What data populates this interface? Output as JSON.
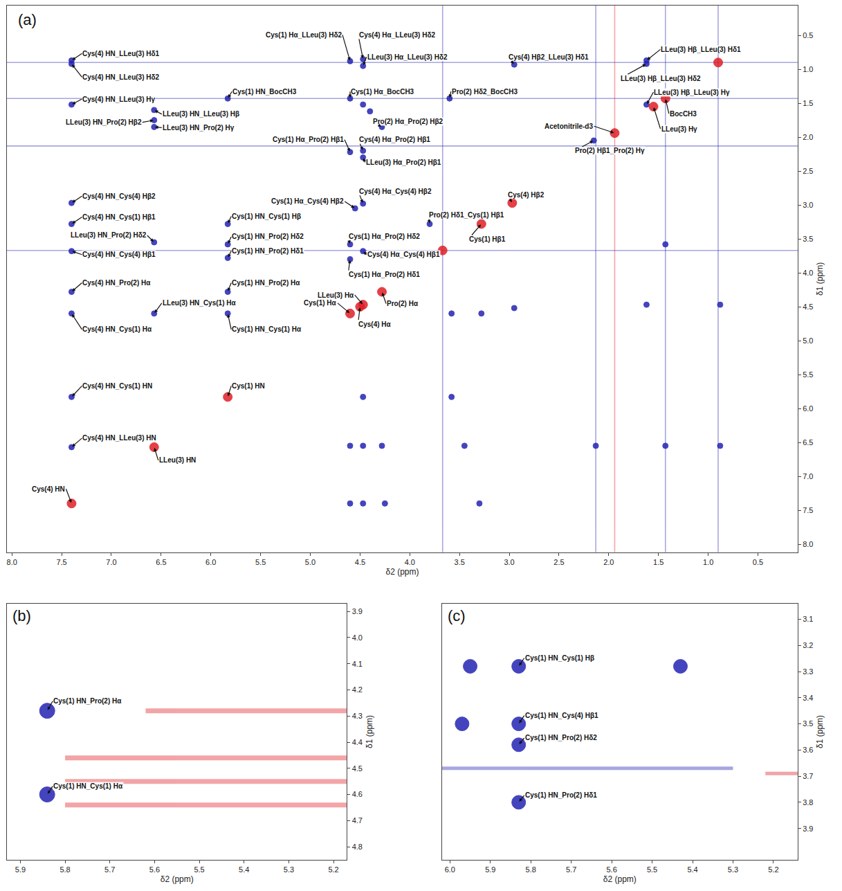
{
  "chart_data": [
    {
      "type": "scatter",
      "title": "(a)",
      "xlabel": "δ2 (ppm)",
      "ylabel": "δ1 (ppm)",
      "xlim": [
        8.05,
        0.1
      ],
      "xticks": [
        {
          "value": 8,
          "label": "8.0"
        },
        7.5,
        {
          "value": 7,
          "label": "7.0"
        },
        6.5,
        {
          "value": 6,
          "label": "6.0"
        },
        5.5,
        {
          "value": 5,
          "label": "5.0"
        },
        4.5,
        {
          "value": 4,
          "label": "4.0"
        },
        3.5,
        {
          "value": 3,
          "label": "3.0"
        },
        2.5,
        {
          "value": 2,
          "label": "2.0"
        },
        1.5,
        {
          "value": 1,
          "label": "1.0"
        },
        0.5
      ],
      "ylim": [
        8.12,
        0.06
      ],
      "yticks": [
        0.5,
        {
          "value": 1,
          "label": "1.0"
        },
        1.5,
        {
          "value": 2,
          "label": "2.0"
        },
        2.5,
        {
          "value": 3,
          "label": "3.0"
        },
        3.5,
        {
          "value": 4,
          "label": "4.0"
        },
        4.5,
        {
          "value": 5,
          "label": "5.0"
        },
        5.5,
        {
          "value": 6,
          "label": "6.0"
        },
        6.5,
        {
          "value": 7,
          "label": "7.0"
        },
        7.5,
        {
          "value": 8,
          "label": "8.0"
        }
      ],
      "series": [
        {
          "color": "#2424b4",
          "marker": "circle",
          "x": [
            7.4,
            7.4,
            7.4,
            6.57,
            6.57,
            6.57,
            5.83,
            4.6,
            4.47,
            4.47,
            4.6,
            3.6,
            4.28,
            2.95,
            1.62,
            1.62,
            1.62,
            2.15,
            4.6,
            4.47,
            4.47,
            7.4,
            7.4,
            6.57,
            7.4,
            4.55,
            5.83,
            5.83,
            5.83,
            4.47,
            3.8,
            4.6,
            4.47,
            4.6,
            7.4,
            5.83,
            6.57,
            7.4,
            5.83,
            7.4,
            7.4,
            4.47,
            4.4,
            4.6,
            4.47,
            4.28,
            3.45,
            4.6,
            4.47,
            4.25,
            3.3,
            4.47,
            3.58,
            2.13,
            1.43,
            0.88,
            3.28,
            3.58,
            2.95,
            1.62,
            0.88,
            1.43
          ],
          "y": [
            0.87,
            0.92,
            1.52,
            1.75,
            1.6,
            1.85,
            1.43,
            0.88,
            0.85,
            0.95,
            1.43,
            1.43,
            1.85,
            0.93,
            0.87,
            0.92,
            1.52,
            2.05,
            2.22,
            2.2,
            2.3,
            2.97,
            3.28,
            3.55,
            3.68,
            3.05,
            3.28,
            3.58,
            3.78,
            2.98,
            3.28,
            3.58,
            3.68,
            3.8,
            4.28,
            4.28,
            4.6,
            4.6,
            4.6,
            5.83,
            6.57,
            1.52,
            1.62,
            6.55,
            6.55,
            6.55,
            6.55,
            7.4,
            7.4,
            7.4,
            7.4,
            5.83,
            5.83,
            6.55,
            6.55,
            6.55,
            4.6,
            4.6,
            4.52,
            4.47,
            4.47,
            3.58
          ],
          "labels": [
            "Cys(4) HN_LLeu(3) Hδ1",
            "Cys(4) HN_LLeu(3) Hδ2",
            "Cys(4) HN_LLeu(3) Hγ",
            "LLeu(3) HN_Pro(2) Hβ2",
            "LLeu(3) HN_LLeu(3) Hβ",
            "LLeu(3) HN_Pro(2) Hγ",
            "Cys(1) HN_BocCH3",
            "Cys(1) Hα_LLeu(3) Hδ2",
            "Cys(4) Hα_LLeu(3) Hδ2",
            "LLeu(3) Hα_LLeu(3) Hδ2",
            "Cys(1) Hα_BocCH3",
            "Pro(2) Hδ2_BocCH3",
            "Pro(2) Hα_Pro(2) Hβ2",
            "Cys(4) Hβ2_LLeu(3) Hδ1",
            "LLeu(3) Hβ_LLeu(3) Hδ1",
            "LLeu(3) Hβ_LLeu(3) Hδ2",
            "LLeu(3) Hβ_LLeu(3) Hγ",
            "Pro(2) Hβ1_Pro(2) Hγ",
            "Cys(1) Hα_Pro(2) Hβ1",
            "Cys(4) Hα_Pro(2) Hβ1",
            "LLeu(3) Hα_Pro(2) Hβ1",
            "Cys(4) HN_Cys(4) Hβ2",
            "Cys(4) HN_Cys(1) Hβ1",
            "LLeu(3) HN_Pro(2) Hδ2",
            "Cys(4) HN_Cys(4) Hβ1",
            "Cys(1) Hα_Cys(4) Hβ2",
            "Cys(1) HN_Cys(1) Hβ",
            "Cys(1) HN_Pro(2) Hδ2",
            "Cys(1) HN_Pro(2) Hδ1",
            "Cys(4) Hα_Cys(4) Hβ2",
            "Pro(2) Hδ1_Cys(1) Hβ1",
            "Cys(1) Hα_Pro(2) Hδ2",
            "Cys(4) Hα_Cys(4) Hβ1",
            "Cys(1) Hα_Pro(2) Hδ1",
            "Cys(4) HN_Pro(2) Hα",
            "Cys(1) HN_Pro(2) Hα",
            "LLeu(3) HN_Cys(1) Hα",
            "Cys(4) HN_Cys(1) Hα",
            "Cys(1) HN_Cys(1) Hα",
            "Cys(4) HN_Cys(1) HN",
            "Cys(4) HN_LLeu(3) HN",
            null,
            null,
            null,
            null,
            null,
            null,
            null,
            null,
            null,
            null,
            null,
            null,
            null,
            null,
            null,
            null,
            null,
            null,
            null,
            null,
            null
          ]
        },
        {
          "color": "#e01f26",
          "marker": "circle",
          "x": [
            1.43,
            1.55,
            1.94,
            2.97,
            3.28,
            4.47,
            4.6,
            4.28,
            4.5,
            5.83,
            6.57,
            7.4,
            0.9,
            3.67
          ],
          "y": [
            1.43,
            1.55,
            1.94,
            2.97,
            3.28,
            4.47,
            4.6,
            4.28,
            4.5,
            5.83,
            6.57,
            7.4,
            0.9,
            3.67
          ],
          "labels": [
            "BocCH3",
            "LLeu(3) Hγ",
            "Acetonitrile-d3",
            "Cys(4) Hβ2",
            "Cys(1) Hβ1",
            "LLeu(3) Hα",
            "Cys(1) Hα",
            "Pro(2) Hα",
            "Cys(4) Hα",
            "Cys(1) HN",
            "LLeu(3) HN",
            "Cys(4) HN",
            null,
            null
          ]
        }
      ],
      "ridges": [
        {
          "color": "#2424b4",
          "x": [
            3.67,
            3.67
          ],
          "y": [
            0.06,
            8.12
          ]
        },
        {
          "color": "#2424b4",
          "x": [
            2.13,
            2.13
          ],
          "y": [
            0.06,
            8.12
          ]
        },
        {
          "color": "#e01f26",
          "x": [
            1.94,
            1.94
          ],
          "y": [
            0.06,
            8.12
          ]
        },
        {
          "color": "#2424b4",
          "x": [
            1.43,
            1.43
          ],
          "y": [
            0.06,
            8.12
          ]
        },
        {
          "color": "#2424b4",
          "x": [
            0.9,
            0.9
          ],
          "y": [
            0.06,
            8.12
          ]
        },
        {
          "color": "#2424b4",
          "x": [
            8.05,
            0.1
          ],
          "y": [
            0.9,
            0.9
          ]
        },
        {
          "color": "#2424b4",
          "x": [
            8.05,
            0.1
          ],
          "y": [
            1.43,
            1.43
          ]
        },
        {
          "color": "#2424b4",
          "x": [
            8.05,
            0.1
          ],
          "y": [
            2.13,
            2.13
          ]
        },
        {
          "color": "#2424b4",
          "x": [
            8.05,
            0.1
          ],
          "y": [
            3.67,
            3.67
          ]
        }
      ]
    },
    {
      "type": "scatter",
      "title": "(b)",
      "xlabel": "δ2 (ppm)",
      "ylabel": "δ1 (ppm)",
      "xlim": [
        5.93,
        5.17
      ],
      "xticks": [
        5.9,
        5.8,
        5.7,
        5.6,
        5.5,
        5.4,
        5.3,
        5.2
      ],
      "ylim": [
        4.85,
        3.87
      ],
      "yticks": [
        3.9,
        {
          "value": 4,
          "label": "4.0"
        },
        4.1,
        4.2,
        4.3,
        4.4,
        4.5,
        4.6,
        4.7,
        4.8
      ],
      "series": [
        {
          "color": "#2424b4",
          "marker": "circle",
          "x": [
            5.84,
            5.84
          ],
          "y": [
            4.28,
            4.6
          ],
          "labels": [
            "Cys(1) HN_Pro(2) Hα",
            "Cys(1) HN_Cys(1) Hα"
          ]
        }
      ],
      "ridges": [
        {
          "color": "#e01f26",
          "x": [
            5.62,
            5.17
          ],
          "y": [
            4.28,
            4.28
          ]
        },
        {
          "color": "#e01f26",
          "x": [
            5.8,
            5.17
          ],
          "y": [
            4.46,
            4.46
          ]
        },
        {
          "color": "#e01f26",
          "x": [
            5.8,
            5.17
          ],
          "y": [
            4.55,
            4.55
          ]
        },
        {
          "color": "#e01f26",
          "x": [
            5.8,
            5.17
          ],
          "y": [
            4.64,
            4.64
          ]
        }
      ]
    },
    {
      "type": "scatter",
      "title": "(c)",
      "xlabel": "δ2 (ppm)",
      "ylabel": "δ1 (ppm)",
      "xlim": [
        6.02,
        5.14
      ],
      "xticks": [
        {
          "value": 6,
          "label": "6.0"
        },
        5.9,
        5.8,
        5.7,
        5.6,
        5.5,
        5.4,
        5.3,
        5.2
      ],
      "ylim": [
        4.02,
        3.04
      ],
      "yticks": [
        3.1,
        3.2,
        3.3,
        3.4,
        3.5,
        3.6,
        3.7,
        3.8,
        3.9
      ],
      "series": [
        {
          "color": "#2424b4",
          "marker": "circle",
          "x": [
            5.83,
            5.83,
            5.83,
            5.83,
            5.95,
            5.97,
            5.43
          ],
          "y": [
            3.28,
            3.5,
            3.58,
            3.8,
            3.28,
            3.5,
            3.28
          ],
          "labels": [
            "Cys(1) HN_Cys(1) Hβ",
            "Cys(1) HN_Cys(4) Hβ1",
            "Cys(1) HN_Pro(2) Hδ2",
            "Cys(1) HN_Pro(2) Hδ1",
            null,
            null,
            null
          ]
        }
      ],
      "ridges": [
        {
          "color": "#2424b4",
          "x": [
            6.02,
            5.3
          ],
          "y": [
            3.67,
            3.67
          ]
        },
        {
          "color": "#e01f26",
          "x": [
            5.22,
            5.14
          ],
          "y": [
            3.69,
            3.69
          ]
        }
      ]
    }
  ]
}
